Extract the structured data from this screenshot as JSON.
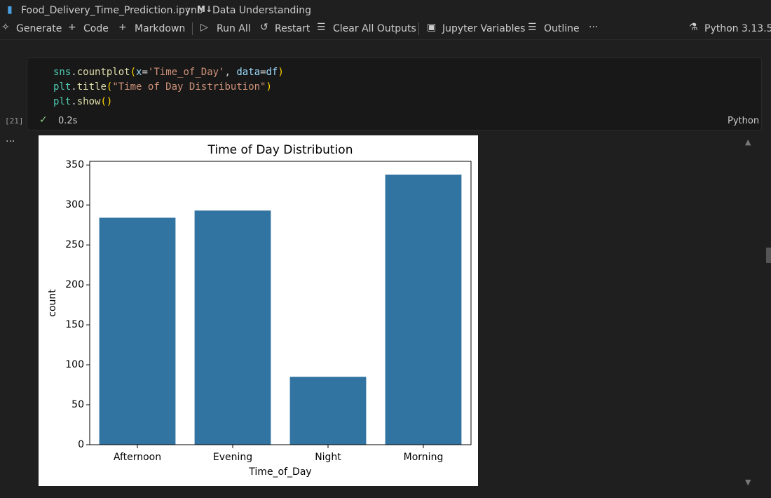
{
  "breadcrumb": {
    "file": "Food_Delivery_Time_Prediction.ipynb",
    "section": "Data Understanding"
  },
  "toolbar": {
    "items": [
      "Generate",
      "Code",
      "Markdown",
      "Run All",
      "Restart",
      "Clear All Outputs",
      "Jupyter Variables",
      "Outline"
    ],
    "kernel": "Python 3.13.5"
  },
  "cell": {
    "code": [
      "sns.countplot(x='Time_of_Day', data=df)",
      "plt.title(\"Time of Day Distribution\")",
      "plt.show()"
    ],
    "execution_count": "[21]",
    "duration": "0.2s",
    "language": "Python"
  },
  "chart_data": {
    "type": "bar",
    "title": "Time of Day Distribution",
    "categories": [
      "Afternoon",
      "Evening",
      "Night",
      "Morning"
    ],
    "values": [
      284,
      293,
      85,
      338
    ],
    "color": "#3274a1",
    "x_label": "Time_of_Day",
    "y_label": "count",
    "ylim": [
      0,
      354.6
    ],
    "yticks": [
      0,
      50,
      100,
      150,
      200,
      250,
      300,
      350
    ],
    "grid": false
  }
}
